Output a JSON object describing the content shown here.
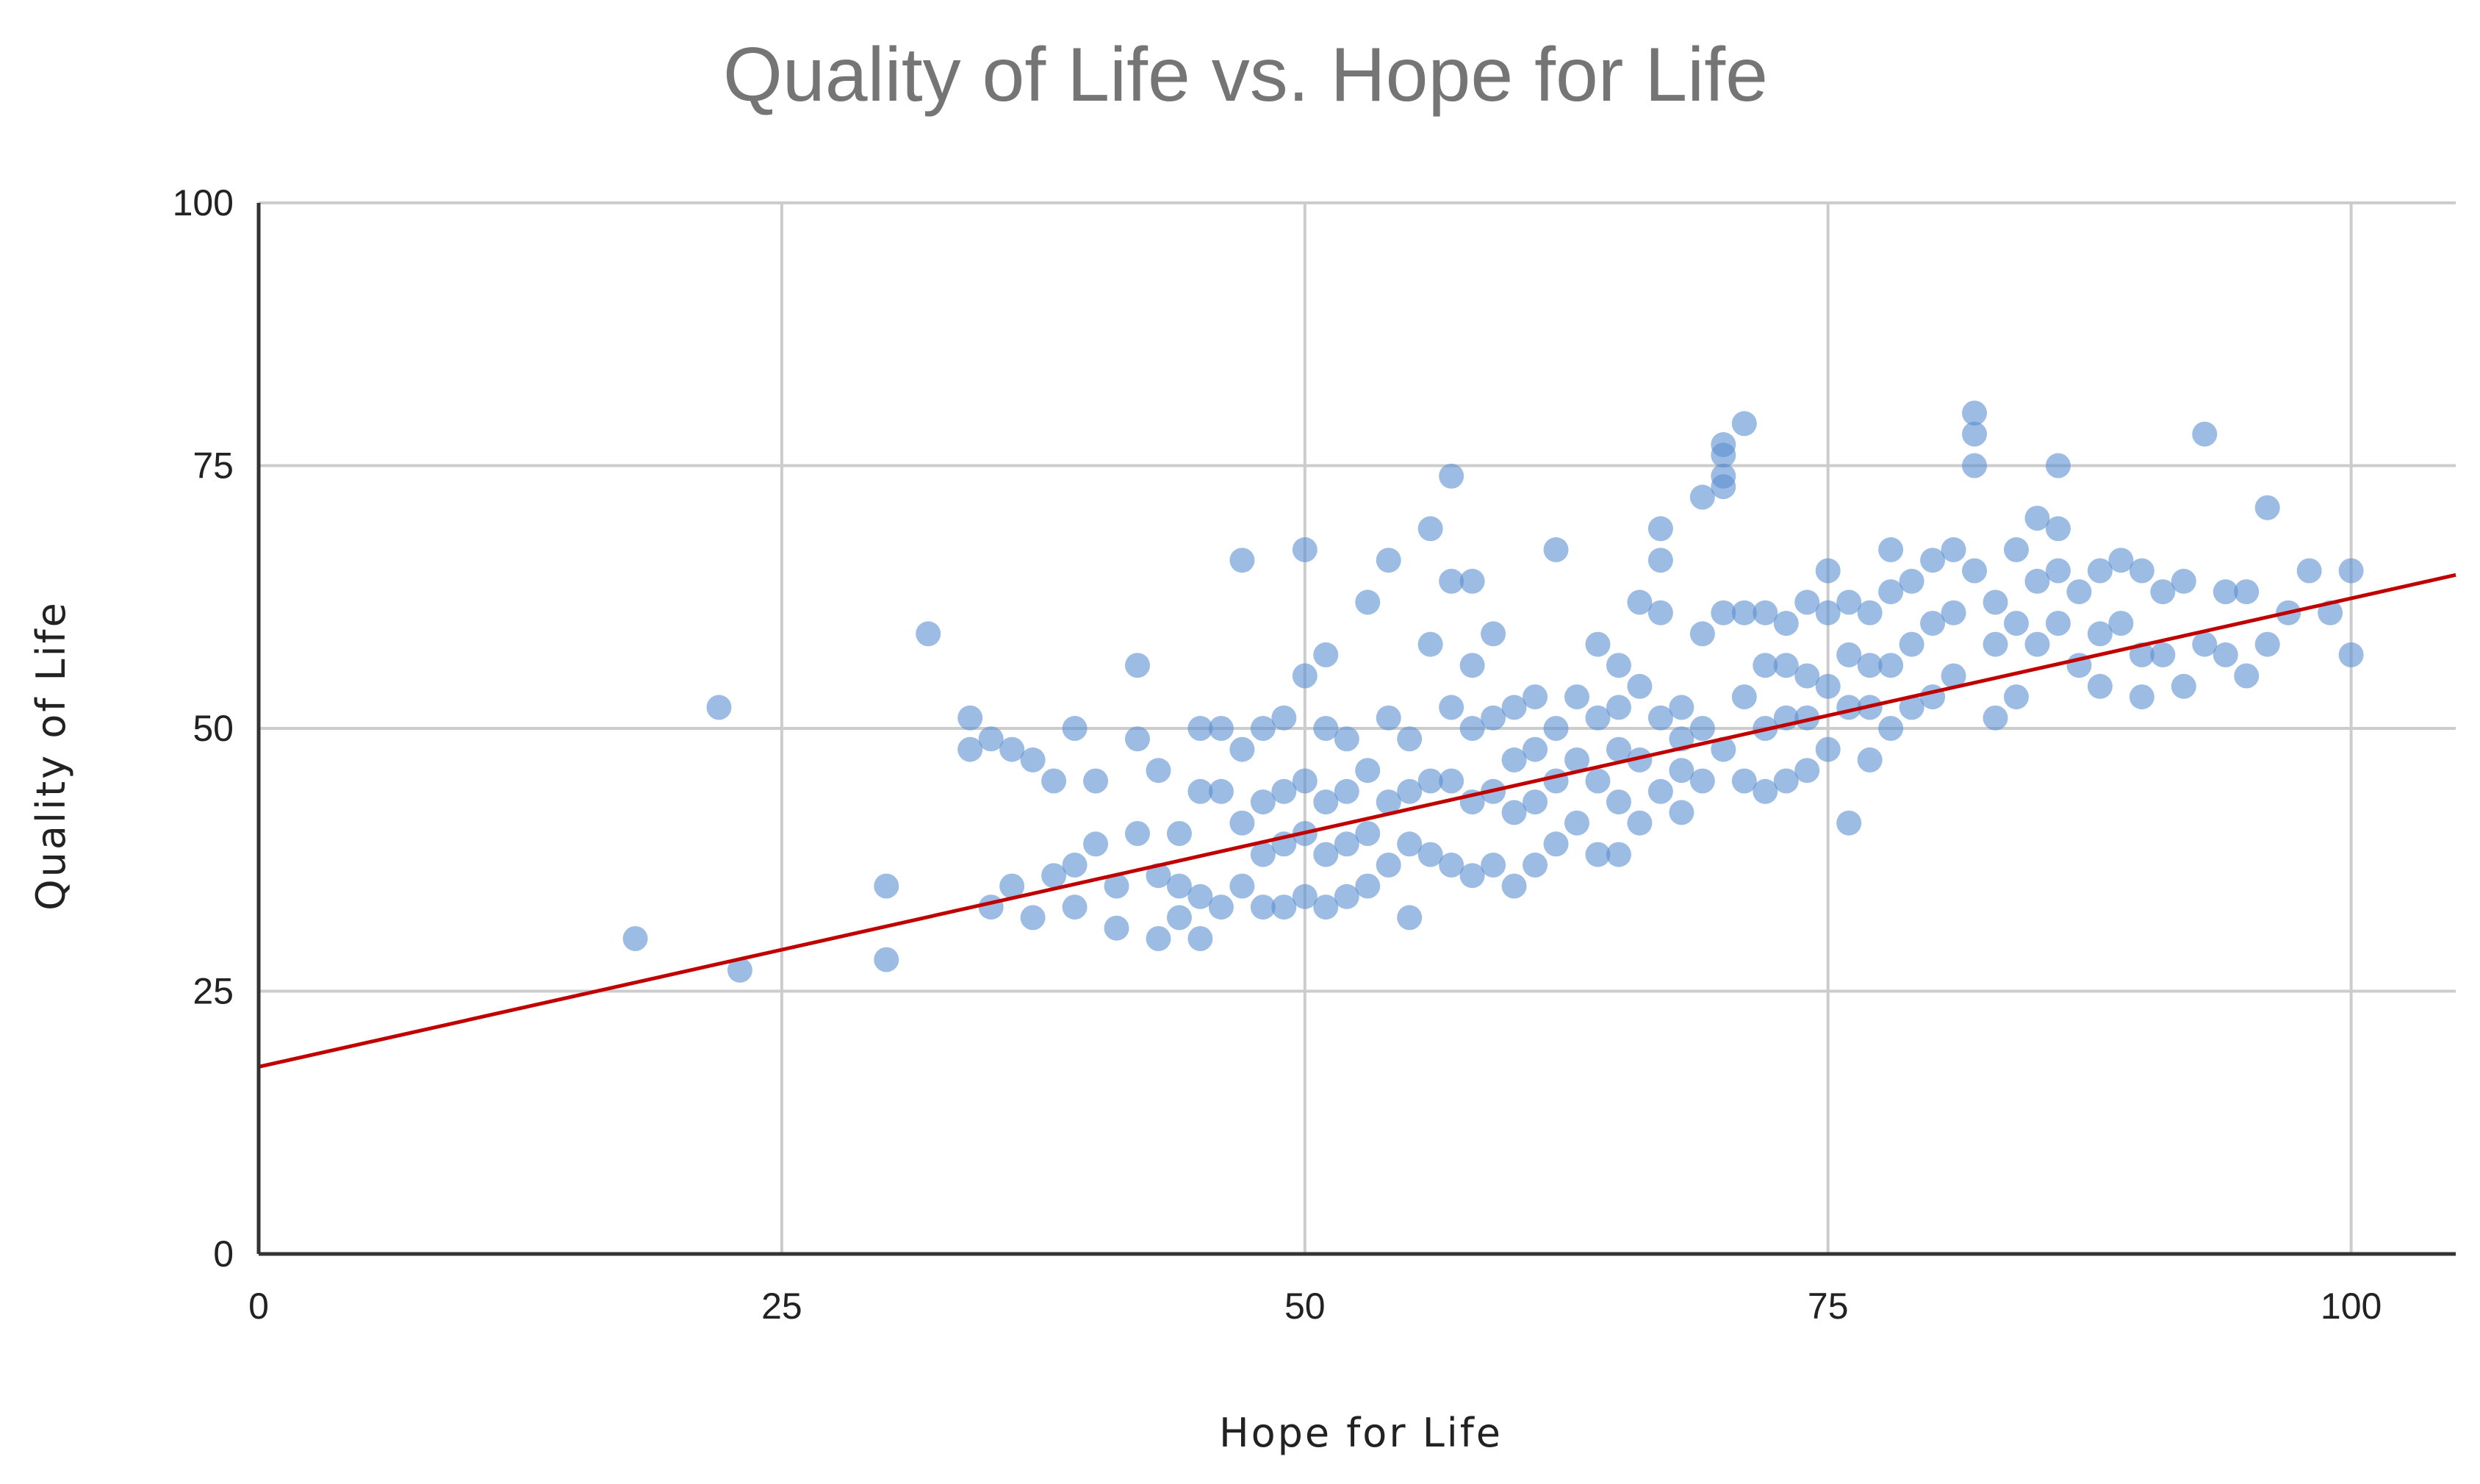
{
  "chart_data": {
    "type": "scatter",
    "title": "Quality of Life vs. Hope for Life",
    "xlabel": "Hope for Life",
    "ylabel": "Quality of Life",
    "xlim": [
      0,
      105
    ],
    "ylim": [
      0,
      100
    ],
    "xticks": [
      0,
      25,
      50,
      75,
      100
    ],
    "yticks": [
      0,
      25,
      50,
      75,
      100
    ],
    "xtick_labels": [
      "0",
      "25",
      "50",
      "75",
      "100"
    ],
    "ytick_labels": [
      "0",
      "25",
      "50",
      "75",
      "100"
    ],
    "grid": true,
    "legend": "none",
    "point_color": "#5b8fd1",
    "trendline": {
      "color": "#c00000",
      "y_at_x0": 17.8,
      "y_at_x105": 64.6
    },
    "series": [
      {
        "name": "Quality of Life",
        "x": [
          18,
          22,
          23,
          30,
          30,
          32,
          34,
          34,
          35,
          35,
          36,
          36,
          37,
          37,
          38,
          38,
          39,
          39,
          39,
          40,
          40,
          41,
          41,
          42,
          42,
          42,
          43,
          43,
          43,
          44,
          44,
          44,
          45,
          45,
          45,
          45,
          46,
          46,
          46,
          47,
          47,
          47,
          47,
          48,
          48,
          48,
          48,
          49,
          49,
          49,
          49,
          50,
          50,
          50,
          50,
          50,
          51,
          51,
          51,
          51,
          51,
          52,
          52,
          52,
          52,
          53,
          53,
          53,
          53,
          54,
          54,
          54,
          54,
          55,
          55,
          55,
          55,
          56,
          56,
          56,
          56,
          57,
          57,
          57,
          57,
          57,
          58,
          58,
          58,
          58,
          58,
          59,
          59,
          59,
          59,
          60,
          60,
          60,
          60,
          61,
          61,
          61,
          61,
          62,
          62,
          62,
          62,
          63,
          63,
          63,
          64,
          64,
          64,
          64,
          65,
          65,
          65,
          65,
          65,
          66,
          66,
          66,
          66,
          67,
          67,
          67,
          67,
          67,
          68,
          68,
          68,
          68,
          69,
          69,
          69,
          69,
          70,
          70,
          70,
          70,
          70,
          70,
          71,
          71,
          71,
          71,
          72,
          72,
          72,
          72,
          73,
          73,
          73,
          73,
          74,
          74,
          74,
          74,
          75,
          75,
          75,
          75,
          76,
          76,
          76,
          76,
          77,
          77,
          77,
          77,
          78,
          78,
          78,
          78,
          79,
          79,
          79,
          80,
          80,
          80,
          81,
          81,
          81,
          82,
          82,
          82,
          82,
          83,
          83,
          83,
          84,
          84,
          84,
          85,
          85,
          85,
          86,
          86,
          86,
          86,
          87,
          87,
          88,
          88,
          88,
          89,
          89,
          90,
          90,
          90,
          91,
          91,
          92,
          92,
          93,
          93,
          94,
          94,
          95,
          95,
          96,
          96,
          97,
          98,
          99,
          100,
          100
        ],
        "y": [
          30,
          52,
          27,
          35,
          28,
          59,
          51,
          48,
          49,
          33,
          48,
          35,
          47,
          32,
          45,
          36,
          50,
          37,
          33,
          45,
          39,
          35,
          31,
          56,
          49,
          40,
          46,
          36,
          30,
          40,
          35,
          32,
          50,
          44,
          34,
          30,
          50,
          44,
          33,
          66,
          48,
          41,
          35,
          50,
          43,
          38,
          33,
          51,
          44,
          39,
          33,
          67,
          55,
          45,
          40,
          34,
          57,
          50,
          43,
          38,
          33,
          49,
          44,
          39,
          34,
          62,
          46,
          40,
          35,
          66,
          51,
          43,
          37,
          49,
          44,
          39,
          32,
          69,
          58,
          45,
          38,
          74,
          64,
          52,
          45,
          37,
          64,
          56,
          50,
          43,
          36,
          59,
          51,
          44,
          37,
          52,
          47,
          42,
          35,
          53,
          48,
          43,
          37,
          67,
          50,
          45,
          39,
          53,
          47,
          41,
          58,
          51,
          45,
          38,
          56,
          52,
          48,
          43,
          38,
          62,
          54,
          47,
          41,
          69,
          66,
          61,
          51,
          44,
          52,
          49,
          46,
          42,
          72,
          59,
          50,
          45,
          77,
          76,
          74,
          73,
          61,
          48,
          79,
          61,
          53,
          45,
          61,
          56,
          50,
          44,
          60,
          56,
          51,
          45,
          62,
          55,
          51,
          46,
          65,
          61,
          54,
          48,
          62,
          57,
          52,
          41,
          61,
          56,
          52,
          47,
          67,
          63,
          56,
          50,
          64,
          58,
          52,
          66,
          60,
          53,
          67,
          61,
          55,
          80,
          78,
          75,
          65,
          62,
          58,
          51,
          67,
          60,
          53,
          70,
          64,
          58,
          75,
          69,
          65,
          60,
          63,
          56,
          65,
          59,
          54,
          66,
          60,
          65,
          57,
          53,
          63,
          57,
          64,
          54,
          78,
          58,
          63,
          57,
          63,
          55,
          71,
          58,
          61,
          65,
          61,
          65,
          57
        ]
      }
    ]
  }
}
